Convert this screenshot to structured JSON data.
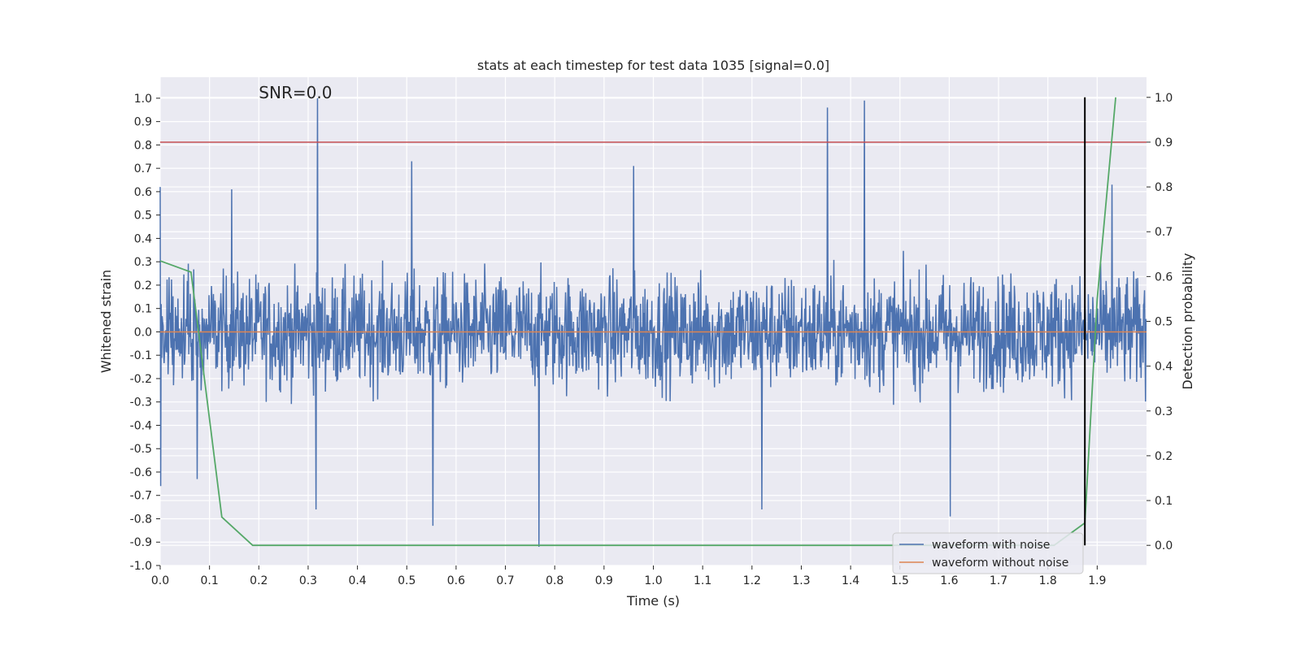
{
  "chart_data": {
    "type": "line",
    "title": "stats at each timestep for test data 1035 [signal=0.0]",
    "xlabel": "Time (s)",
    "ylabel": "Whitened strain",
    "ylabel_right": "Detection probability",
    "annotation": "SNR=0.0",
    "xlim": [
      0.0,
      2.0
    ],
    "ylim": [
      -1.0,
      1.09
    ],
    "ylim_right": [
      -0.045,
      1.045
    ],
    "xticks": [
      "0.0",
      "0.1",
      "0.2",
      "0.3",
      "0.4",
      "0.5",
      "0.6",
      "0.7",
      "0.8",
      "0.9",
      "1.0",
      "1.1",
      "1.2",
      "1.3",
      "1.4",
      "1.5",
      "1.6",
      "1.7",
      "1.8",
      "1.9"
    ],
    "yticks": [
      "-1.0",
      "-0.9",
      "-0.8",
      "-0.7",
      "-0.6",
      "-0.5",
      "-0.4",
      "-0.3",
      "-0.2",
      "-0.1",
      "0.0",
      "0.1",
      "0.2",
      "0.3",
      "0.4",
      "0.5",
      "0.6",
      "0.7",
      "0.8",
      "0.9",
      "1.0"
    ],
    "yticks_right": [
      "0.0",
      "0.1",
      "0.2",
      "0.3",
      "0.4",
      "0.5",
      "0.6",
      "0.7",
      "0.8",
      "0.9",
      "1.0"
    ],
    "grid": true,
    "legend_position": "lower-right",
    "series": [
      {
        "name": "waveform with noise",
        "axis": "left",
        "color": "#4c72b0",
        "sample_count": 2000,
        "x_range": [
          0.0,
          1.999
        ],
        "value_range": [
          -0.92,
          1.0
        ],
        "spikes": [
          {
            "x": 0.0,
            "y": 0.62
          },
          {
            "x": 0.001,
            "y": -0.66
          },
          {
            "x": 0.319,
            "y": 1.0
          },
          {
            "x": 0.316,
            "y": -0.76
          },
          {
            "x": 0.768,
            "y": -0.92
          },
          {
            "x": 1.353,
            "y": 0.96
          },
          {
            "x": 1.428,
            "y": 0.99
          },
          {
            "x": 0.553,
            "y": -0.83
          },
          {
            "x": 1.602,
            "y": -0.79
          },
          {
            "x": 1.22,
            "y": -0.76
          },
          {
            "x": 0.075,
            "y": -0.63
          },
          {
            "x": 1.93,
            "y": 0.63
          },
          {
            "x": 0.51,
            "y": 0.73
          },
          {
            "x": 0.96,
            "y": 0.71
          },
          {
            "x": 0.145,
            "y": 0.61
          }
        ]
      },
      {
        "name": "waveform without noise",
        "axis": "left",
        "color": "#dd8452",
        "x": [
          0.0,
          2.0
        ],
        "y": [
          0.0,
          0.0
        ]
      },
      {
        "name": "",
        "axis": "right",
        "color": "#55a868",
        "x": [
          0.0,
          0.0625,
          0.125,
          0.1875,
          0.25,
          0.3125,
          1.75,
          1.8125,
          1.875,
          1.9,
          1.9375
        ],
        "y": [
          0.635,
          0.61,
          0.063,
          0.0,
          0.0,
          0.0,
          0.0,
          0.0,
          0.05,
          0.55,
          1.0
        ]
      }
    ],
    "threshold": {
      "axis": "right",
      "y": 0.9,
      "color": "#c44e52"
    },
    "marker_line": {
      "x": 1.875,
      "y_range_right": [
        0.0,
        1.0
      ],
      "color": "#000000"
    }
  }
}
